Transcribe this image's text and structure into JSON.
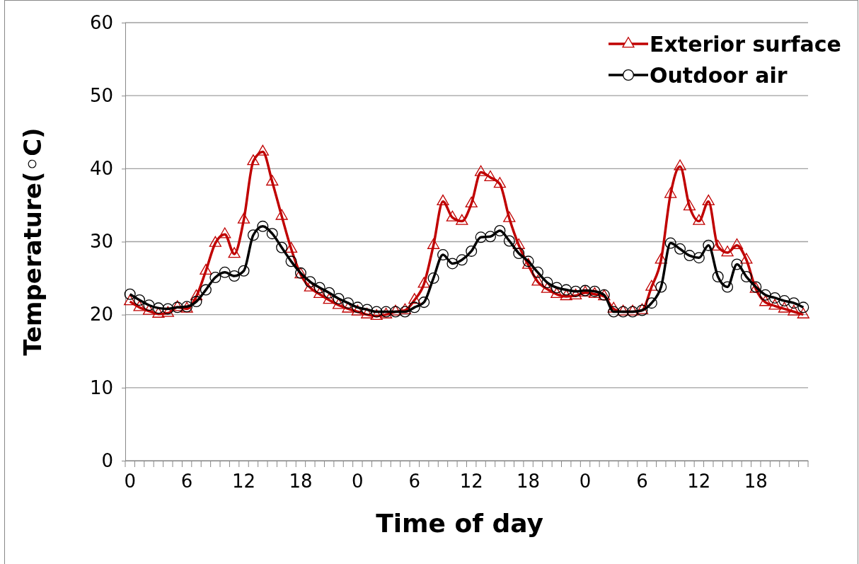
{
  "chart_data": {
    "type": "line",
    "xlabel": "Time of day",
    "ylabel": "Temperature(◦C)",
    "categories": [
      "0",
      null,
      null,
      null,
      null,
      null,
      "6",
      null,
      null,
      null,
      null,
      null,
      "12",
      null,
      null,
      null,
      null,
      null,
      "18",
      null,
      null,
      null,
      null,
      null,
      "0",
      null,
      null,
      null,
      null,
      null,
      "6",
      null,
      null,
      null,
      null,
      null,
      "12",
      null,
      null,
      null,
      null,
      null,
      "18",
      null,
      null,
      null,
      null,
      null,
      "0",
      null,
      null,
      null,
      null,
      null,
      "6",
      null,
      null,
      null,
      null,
      null,
      "12",
      null,
      null,
      null,
      null,
      null,
      "18",
      null,
      null,
      null,
      null,
      null
    ],
    "series": [
      {
        "name": "Exterior surface",
        "color": "#c00000",
        "marker": "triangle",
        "values": [
          21.8,
          21.0,
          20.5,
          20.1,
          20.2,
          21.0,
          20.8,
          22.5,
          26.0,
          29.8,
          31.0,
          28.3,
          33.0,
          41.0,
          42.3,
          38.2,
          33.5,
          29.0,
          25.5,
          23.7,
          22.8,
          22.0,
          21.3,
          20.8,
          20.4,
          20.0,
          19.8,
          20.0,
          20.4,
          20.6,
          22.0,
          24.2,
          29.5,
          35.5,
          33.3,
          32.8,
          35.2,
          39.5,
          38.8,
          37.9,
          33.2,
          29.5,
          26.8,
          24.5,
          23.5,
          22.8,
          22.5,
          22.6,
          23.0,
          22.8,
          22.5,
          20.8,
          20.4,
          20.4,
          20.6,
          23.8,
          27.5,
          36.5,
          40.3,
          34.8,
          32.8,
          35.5,
          29.3,
          28.5,
          29.5,
          27.5,
          23.5,
          21.7,
          21.2,
          20.8,
          20.4,
          20.0
        ]
      },
      {
        "name": "Outdoor air",
        "color": "#000000",
        "marker": "circle",
        "values": [
          22.8,
          22.0,
          21.3,
          20.9,
          20.8,
          21.0,
          21.1,
          21.8,
          23.4,
          25.1,
          25.8,
          25.3,
          26.0,
          30.9,
          32.1,
          31.1,
          29.2,
          27.3,
          25.7,
          24.5,
          23.7,
          23.0,
          22.2,
          21.6,
          21.0,
          20.7,
          20.4,
          20.4,
          20.4,
          20.4,
          21.0,
          21.7,
          25.0,
          28.2,
          27.0,
          27.5,
          28.7,
          30.6,
          30.7,
          31.5,
          30.1,
          28.4,
          27.3,
          25.8,
          24.4,
          23.7,
          23.4,
          23.2,
          23.3,
          23.2,
          22.7,
          20.4,
          20.4,
          20.4,
          20.6,
          21.6,
          23.8,
          29.8,
          29.0,
          28.1,
          27.8,
          29.5,
          25.2,
          23.8,
          26.9,
          25.2,
          23.8,
          22.7,
          22.3,
          21.9,
          21.6,
          21.0
        ]
      }
    ],
    "ylim": [
      0,
      60
    ],
    "yticks": [
      0,
      10,
      20,
      30,
      40,
      50,
      60
    ],
    "grid": "y",
    "legend": "top right",
    "line_style": "solid"
  }
}
